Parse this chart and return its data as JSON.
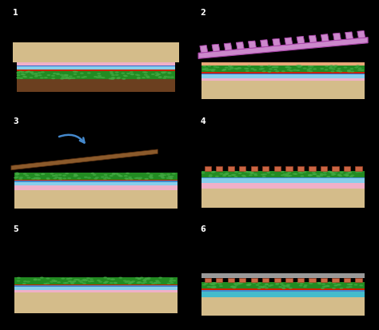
{
  "bg_color": "#000000",
  "fig_width": 4.74,
  "fig_height": 4.13,
  "dpi": 100,
  "colors": {
    "glass": "#d4bc8a",
    "mgo_pink": "#f0b0c8",
    "zno_blue": "#87ceeb",
    "zno_dark": "#4488cc",
    "blue_line": "#3366cc",
    "red_line": "#cc2200",
    "cigs_green": "#228b22",
    "cigs_hi": "#44aa44",
    "mo_brown": "#6b3f1f",
    "brown_slab": "#8b5a2b",
    "cigs_salmon": "#e8a878",
    "tco_pink": "#cc88cc",
    "tco_dark": "#aa44aa",
    "dot_color": "#cc6644",
    "dot_border": "#aa4422",
    "gray_cover": "#999999",
    "arrow_blue": "#4488cc",
    "cyan_layer": "#44bbcc",
    "pink_thin": "#f0c0d0"
  }
}
